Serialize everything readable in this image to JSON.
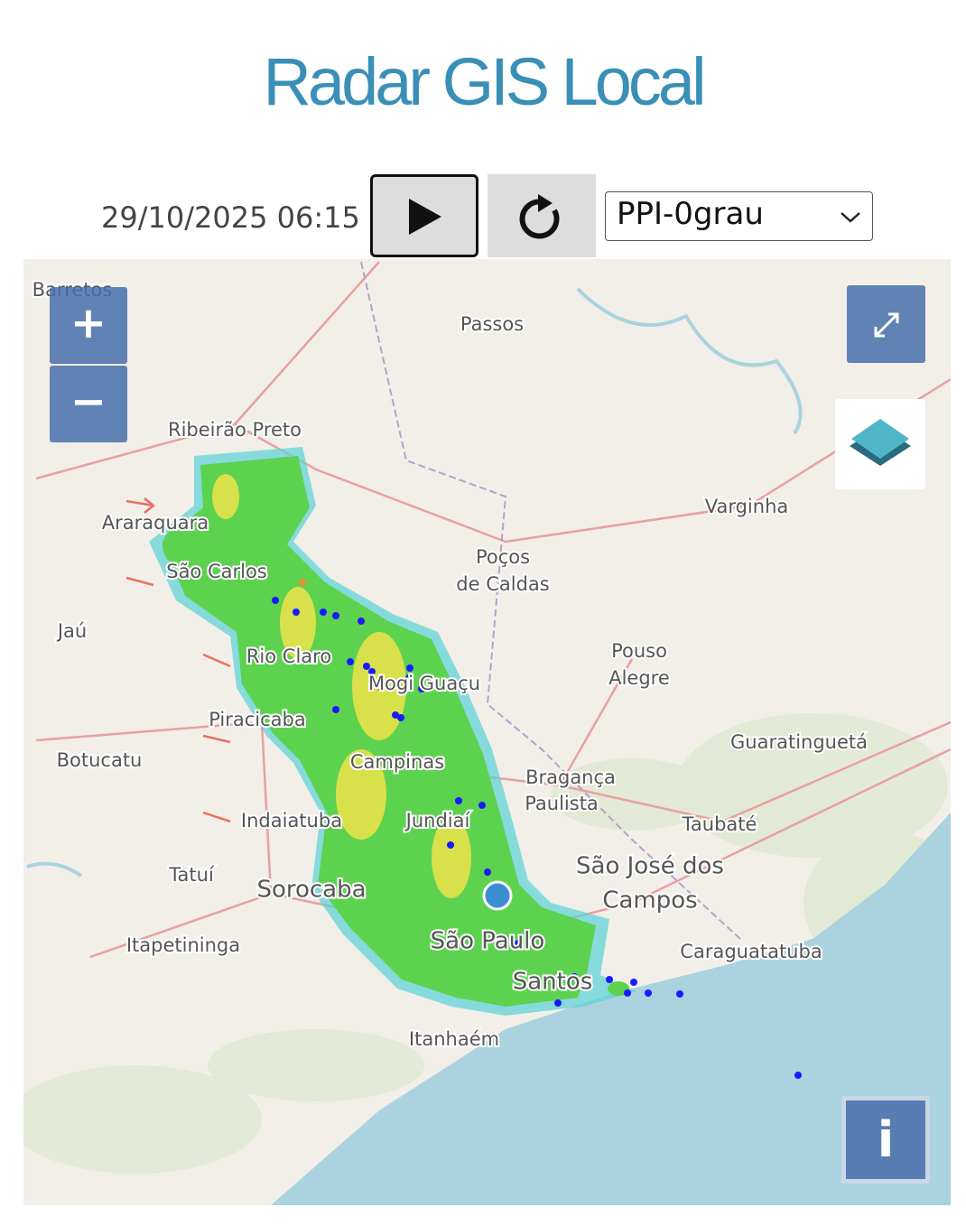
{
  "header": {
    "title": "Radar GIS Local"
  },
  "controls": {
    "datetime": "29/10/2025 06:15",
    "product": "PPI-0grau"
  },
  "map": {
    "zoom_in": "+",
    "zoom_out": "−",
    "info": "i",
    "labels": [
      "Barretos",
      "Passos",
      "Ribeirão Preto",
      "Araraquara",
      "São Carlos",
      "Jaú",
      "Rio Claro",
      "Mogi Guaçu",
      "Poços",
      "de Caldas",
      "Pouso",
      "Alegre",
      "Varginha",
      "Piracicaba",
      "Botucatu",
      "Campinas",
      "Bragança",
      "Paulista",
      "Guaratinguetá",
      "Taubaté",
      "Indaiatuba",
      "Jundiaí",
      "São José dos",
      "Campos",
      "Tatuí",
      "Sorocaba",
      "Itapetininga",
      "São Paulo",
      "Caraguatatuba",
      "Santos",
      "Itanhaém"
    ]
  }
}
